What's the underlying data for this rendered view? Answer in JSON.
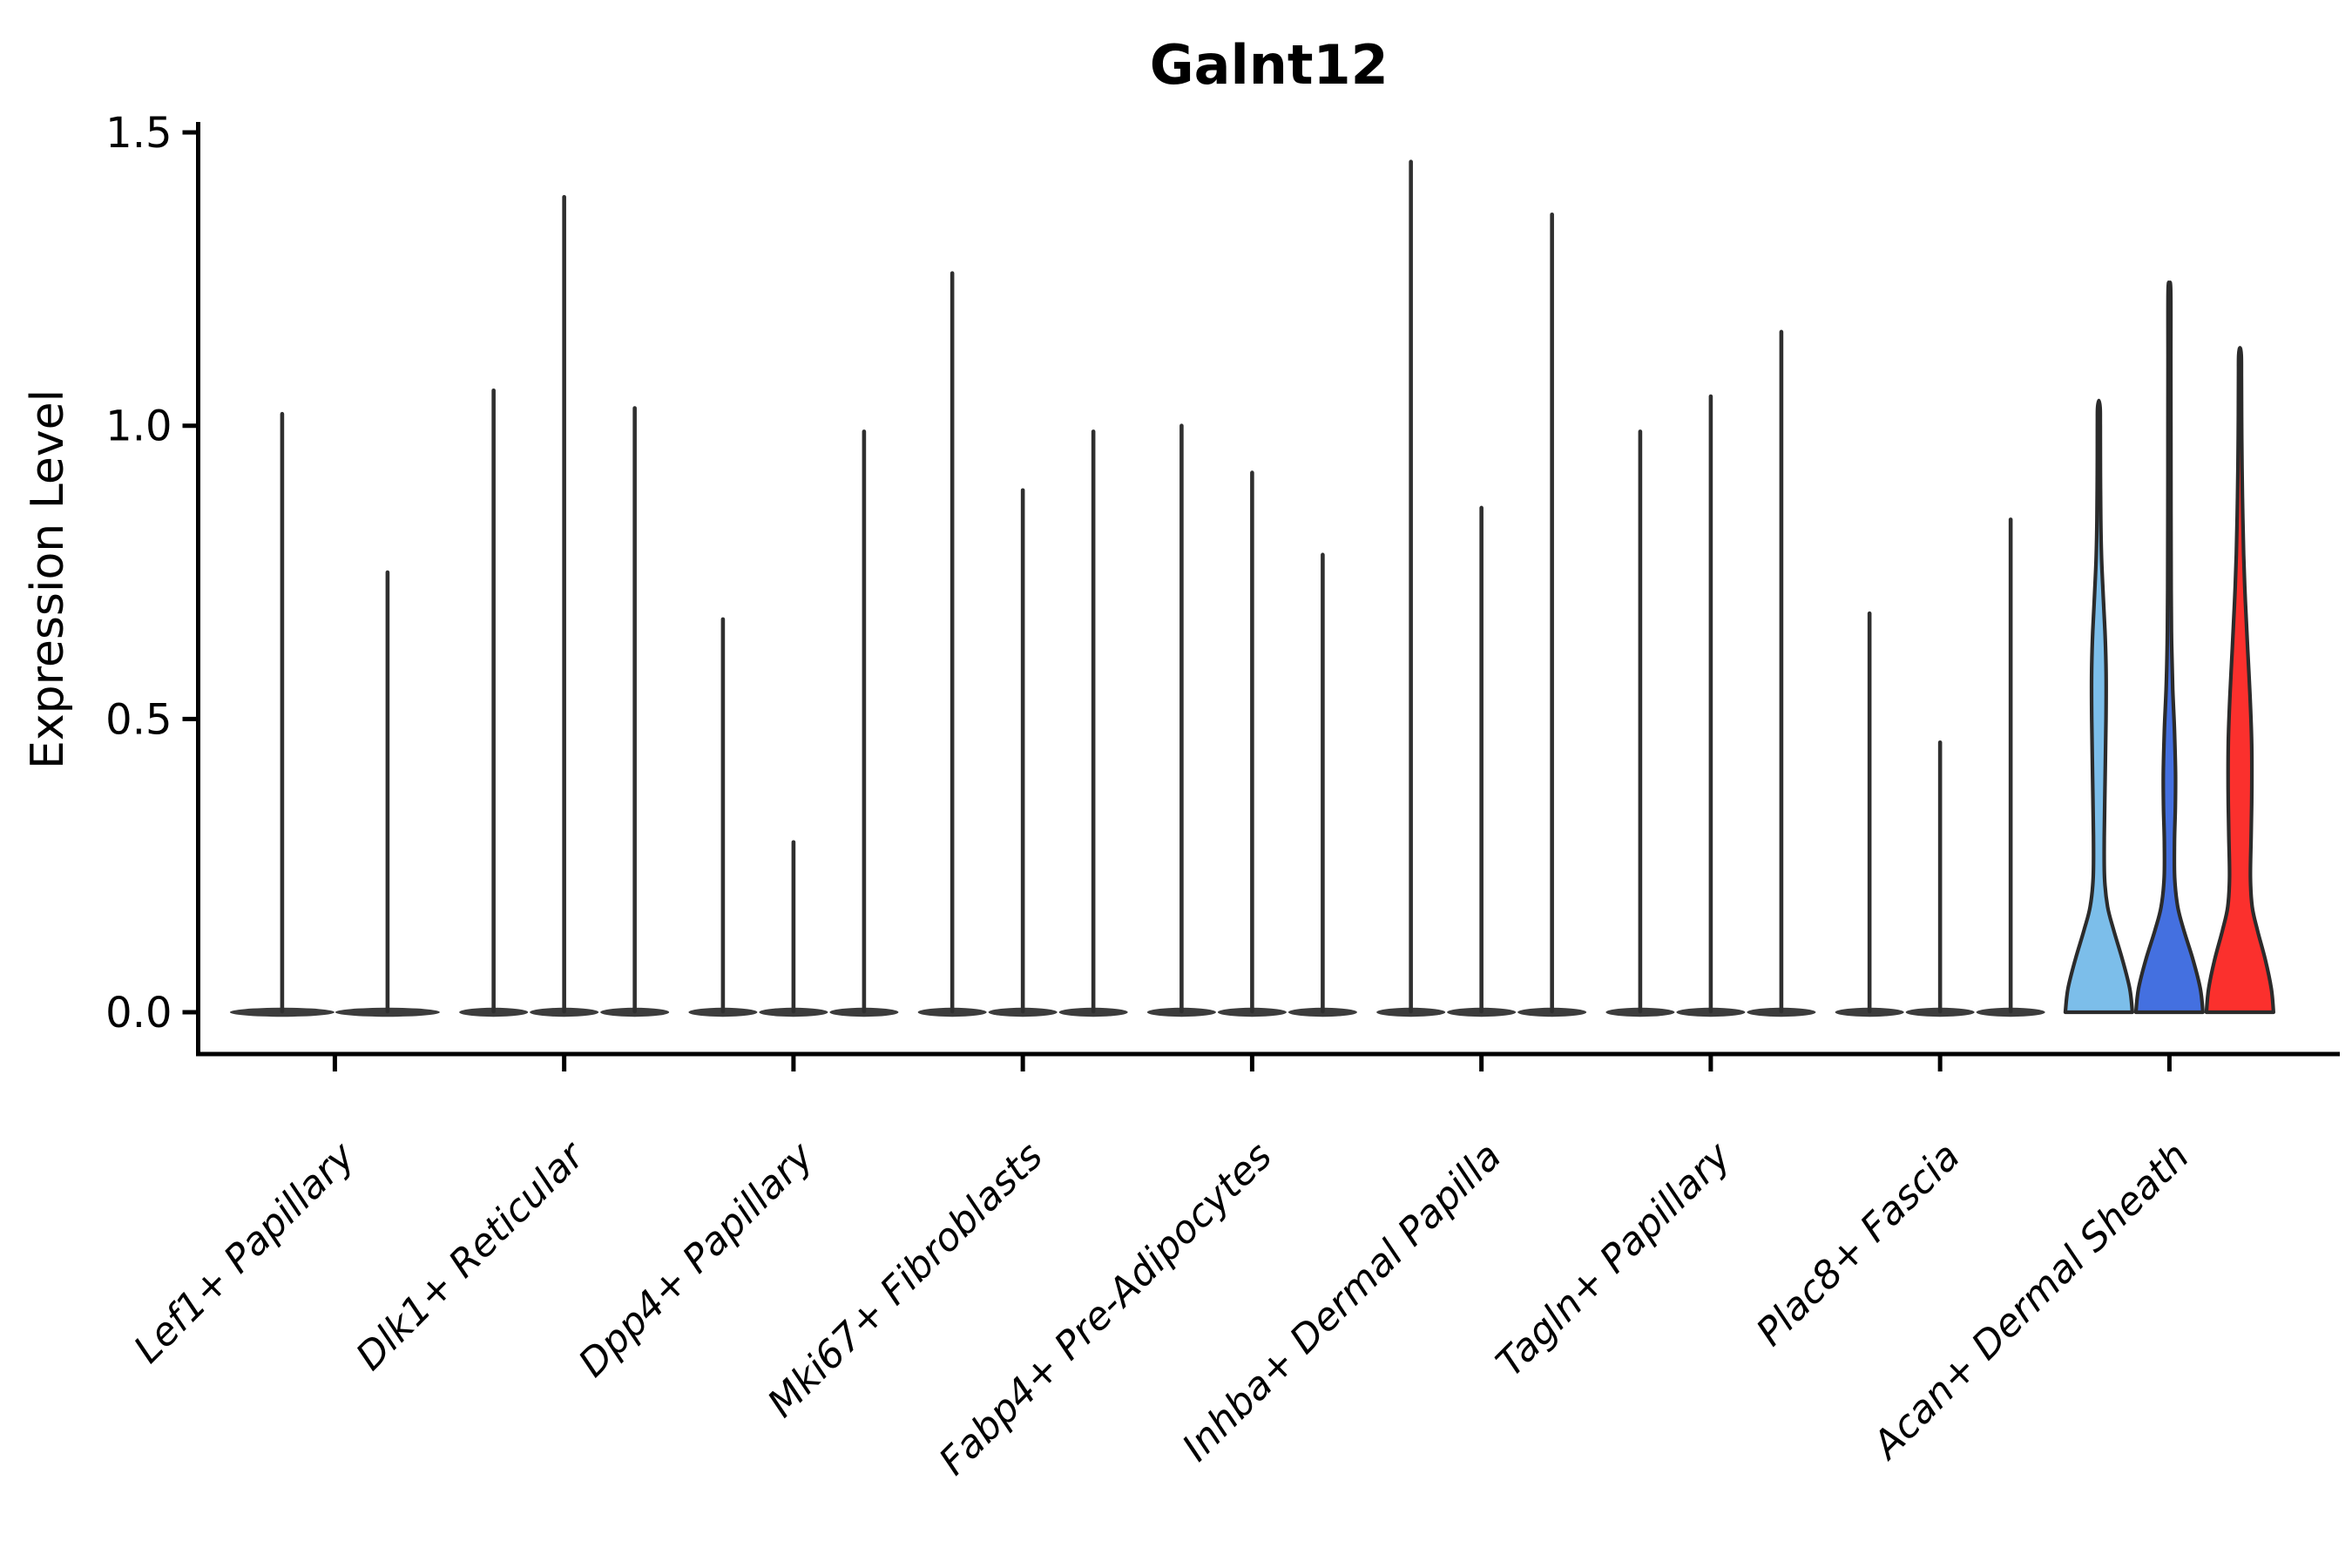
{
  "figure": {
    "title": "Galnt12"
  },
  "chart_data": {
    "type": "violin",
    "title": "Galnt12",
    "xlabel": "",
    "ylabel": "Expression Level",
    "ylim": [
      -0.07,
      1.52
    ],
    "grid": false,
    "legend_position": "none",
    "ytick_values": [
      0.0,
      0.5,
      1.0,
      1.5
    ],
    "ytick_labels": [
      "0.0",
      "0.5",
      "1.0",
      "1.5"
    ],
    "categories": [
      "Lef1+ Papillary",
      "Dlk1+ Reticular",
      "Dpp4+ Papillary",
      "Mki67+ Fibroblasts",
      "Fabp4+ Pre-Adipocytes",
      "Inhba+ Dermal Papilla",
      "Tagln+ Papillary",
      "Plac8+ Fascia",
      "Acan+ Dermal Sheath"
    ],
    "colors": {
      "spike": "#2f2f2f",
      "violin_outline": "#2b2b2b",
      "baseline_lens": "#3c3c3c",
      "axis": "#000000",
      "acan_dermal_sheath_fills": [
        "#7CBEEA",
        "#4470E0",
        "#FB302D"
      ]
    },
    "groups": [
      {
        "category": "Lef1+ Papillary",
        "violins": [
          {
            "max": 1.02,
            "style": "spike"
          },
          {
            "max": 0.75,
            "style": "spike"
          }
        ]
      },
      {
        "category": "Dlk1+ Reticular",
        "violins": [
          {
            "max": 1.06,
            "style": "spike"
          },
          {
            "max": 1.39,
            "style": "spike"
          },
          {
            "max": 1.03,
            "style": "spike"
          }
        ]
      },
      {
        "category": "Dpp4+ Papillary",
        "violins": [
          {
            "max": 0.67,
            "style": "spike"
          },
          {
            "max": 0.29,
            "style": "spike"
          },
          {
            "max": 0.99,
            "style": "spike"
          }
        ]
      },
      {
        "category": "Mki67+ Fibroblasts",
        "violins": [
          {
            "max": 1.26,
            "style": "spike"
          },
          {
            "max": 0.89,
            "style": "spike"
          },
          {
            "max": 0.99,
            "style": "spike"
          }
        ]
      },
      {
        "category": "Fabp4+ Pre-Adipocytes",
        "violins": [
          {
            "max": 1.0,
            "style": "spike"
          },
          {
            "max": 0.92,
            "style": "spike"
          },
          {
            "max": 0.78,
            "style": "spike"
          }
        ]
      },
      {
        "category": "Inhba+ Dermal Papilla",
        "violins": [
          {
            "max": 1.45,
            "style": "spike"
          },
          {
            "max": 0.86,
            "style": "spike"
          },
          {
            "max": 1.36,
            "style": "spike"
          }
        ]
      },
      {
        "category": "Tagln+ Papillary",
        "violins": [
          {
            "max": 0.99,
            "style": "spike"
          },
          {
            "max": 1.05,
            "style": "spike"
          },
          {
            "max": 1.16,
            "style": "spike"
          }
        ]
      },
      {
        "category": "Plac8+ Fascia",
        "violins": [
          {
            "max": 0.68,
            "style": "spike"
          },
          {
            "max": 0.46,
            "style": "spike"
          },
          {
            "max": 0.84,
            "style": "spike"
          }
        ]
      },
      {
        "category": "Acan+ Dermal Sheath",
        "violins": [
          {
            "max": 1.04,
            "style": "filled",
            "fill": "#7CBEEA",
            "profile": [
              [
                0,
                38.5
              ],
              [
                0.04,
                35.5
              ],
              [
                0.09,
                27
              ],
              [
                0.14,
                17
              ],
              [
                0.18,
                10
              ],
              [
                0.23,
                6.5
              ],
              [
                0.3,
                6.2
              ],
              [
                0.4,
                7.2
              ],
              [
                0.5,
                8.2
              ],
              [
                0.58,
                8.3
              ],
              [
                0.65,
                7.0
              ],
              [
                0.71,
                5.0
              ],
              [
                0.77,
                3.2
              ],
              [
                0.84,
                2.2
              ],
              [
                0.92,
                1.8
              ],
              [
                1.0,
                1.7
              ],
              [
                1.03,
                1.5
              ]
            ]
          },
          {
            "max": 1.24,
            "style": "filled",
            "fill": "#4470E0",
            "profile": [
              [
                0,
                38.5
              ],
              [
                0.04,
                35.5
              ],
              [
                0.09,
                27
              ],
              [
                0.14,
                16.5
              ],
              [
                0.18,
                9.5
              ],
              [
                0.23,
                6.0
              ],
              [
                0.29,
                5.8
              ],
              [
                0.35,
                6.8
              ],
              [
                0.41,
                7.0
              ],
              [
                0.48,
                5.8
              ],
              [
                0.55,
                3.8
              ],
              [
                0.63,
                2.5
              ],
              [
                0.72,
                2.0
              ],
              [
                0.85,
                1.8
              ],
              [
                1.0,
                1.7
              ],
              [
                1.12,
                1.6
              ],
              [
                1.23,
                1.5
              ]
            ]
          },
          {
            "max": 1.13,
            "style": "filled",
            "fill": "#FB302D",
            "profile": [
              [
                0,
                38.5
              ],
              [
                0.04,
                36
              ],
              [
                0.09,
                29
              ],
              [
                0.14,
                20
              ],
              [
                0.18,
                14
              ],
              [
                0.23,
                12
              ],
              [
                0.3,
                12.8
              ],
              [
                0.38,
                13.6
              ],
              [
                0.46,
                13.4
              ],
              [
                0.54,
                11.5
              ],
              [
                0.62,
                8.8
              ],
              [
                0.7,
                6.2
              ],
              [
                0.78,
                4.2
              ],
              [
                0.88,
                2.8
              ],
              [
                0.98,
                2.0
              ],
              [
                1.08,
                1.7
              ],
              [
                1.12,
                1.5
              ]
            ]
          }
        ]
      }
    ]
  }
}
